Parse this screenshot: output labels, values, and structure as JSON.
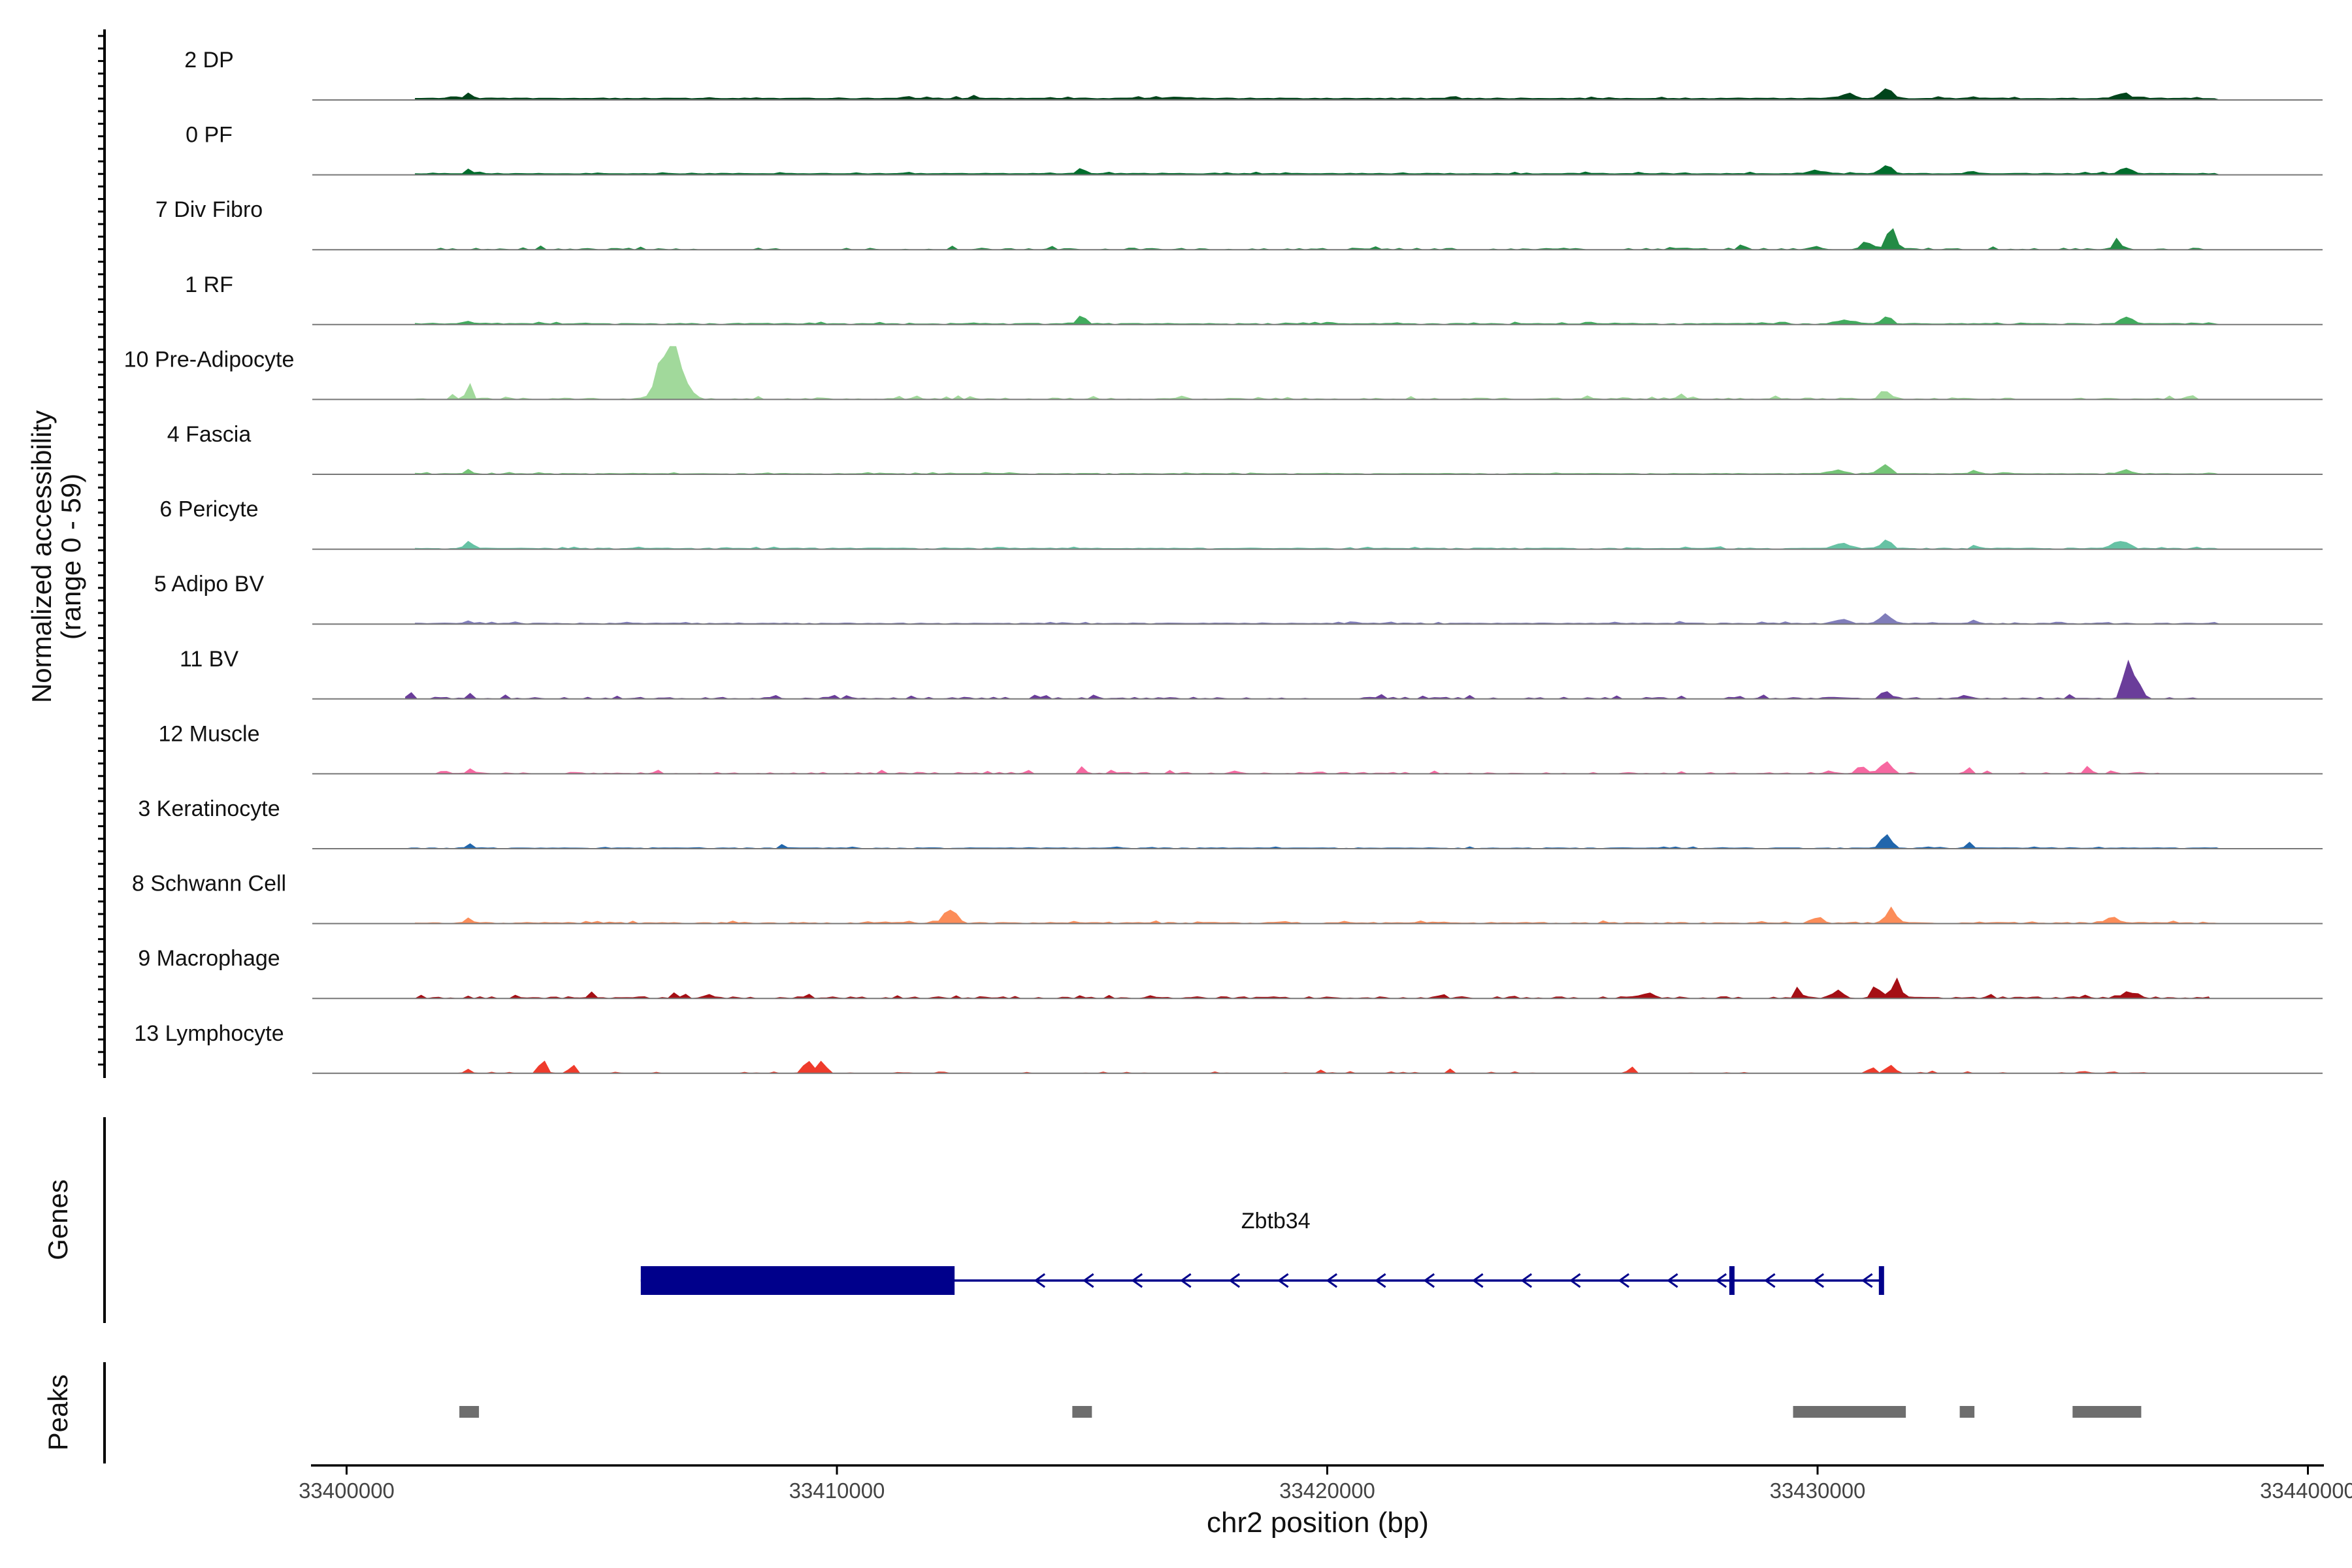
{
  "chart_data": {
    "type": "area",
    "title": "",
    "ylabel_line1": "Normalized accessibility",
    "ylabel_line2": "(range 0 - 59)",
    "xlabel": "chr2 position (bp)",
    "xlim": [
      33399300,
      33440300
    ],
    "ylim": [
      0,
      59
    ],
    "x_ticks": [
      33400000,
      33410000,
      33420000,
      33430000,
      33440000
    ],
    "x_tick_labels": [
      "33400000",
      "33410000",
      "33420000",
      "33430000",
      "33440000"
    ],
    "genes_label": "Genes",
    "peaks_label": "Peaks",
    "tracks": [
      {
        "name": "2 DP",
        "color": "#00441b",
        "start": 33401400,
        "end": 33438200,
        "base": 1,
        "noise": 0.6,
        "dense": 1.0,
        "peaks": [
          [
            33402500,
            4.5,
            60
          ],
          [
            33431400,
            7,
            120
          ],
          [
            33430600,
            3.5,
            150
          ],
          [
            33436200,
            4,
            130
          ],
          [
            33433200,
            2,
            60
          ],
          [
            33417000,
            1.2,
            150
          ],
          [
            33412800,
            1,
            100
          ]
        ]
      },
      {
        "name": "0 PF",
        "color": "#006d2c",
        "start": 33401400,
        "end": 33438200,
        "base": 0.8,
        "noise": 0.5,
        "dense": 1.0,
        "peaks": [
          [
            33402500,
            3,
            60
          ],
          [
            33415000,
            4,
            80
          ],
          [
            33431400,
            7,
            100
          ],
          [
            33436300,
            5.5,
            100
          ],
          [
            33430000,
            2.5,
            150
          ],
          [
            33433200,
            2,
            60
          ]
        ]
      },
      {
        "name": "7 Div Fibro",
        "color": "#238b45",
        "start": 33401800,
        "end": 33438000,
        "base": 0.4,
        "noise": 0.9,
        "dense": 0.45,
        "peaks": [
          [
            33431500,
            14,
            100
          ],
          [
            33431000,
            5,
            120
          ],
          [
            33436100,
            5,
            80
          ],
          [
            33430000,
            2,
            120
          ],
          [
            33428500,
            2,
            80
          ]
        ]
      },
      {
        "name": "1 RF",
        "color": "#41ab5d",
        "start": 33401400,
        "end": 33438200,
        "base": 0.5,
        "noise": 0.5,
        "dense": 0.9,
        "peaks": [
          [
            33402500,
            2.5,
            60
          ],
          [
            33415000,
            5.5,
            100
          ],
          [
            33431400,
            5,
            100
          ],
          [
            33436300,
            6.5,
            100
          ],
          [
            33430600,
            3,
            150
          ]
        ]
      },
      {
        "name": "10 Pre-Adipocyte",
        "color": "#a1d99b",
        "start": 33401200,
        "end": 33438000,
        "base": 0.3,
        "noise": 0.9,
        "dense": 0.55,
        "peaks": [
          [
            33402500,
            13,
            50
          ],
          [
            33406500,
            32,
            180
          ],
          [
            33406800,
            24,
            150
          ],
          [
            33402200,
            4,
            40
          ],
          [
            33431400,
            6,
            100
          ],
          [
            33427200,
            5,
            50
          ],
          [
            33437600,
            4,
            60
          ]
        ]
      },
      {
        "name": "4 Fascia",
        "color": "#74c476",
        "start": 33401400,
        "end": 33438200,
        "base": 0.4,
        "noise": 0.4,
        "dense": 0.9,
        "peaks": [
          [
            33402500,
            3,
            60
          ],
          [
            33431400,
            8,
            100
          ],
          [
            33430400,
            3,
            150
          ],
          [
            33433200,
            3,
            60
          ],
          [
            33436300,
            3,
            100
          ]
        ]
      },
      {
        "name": "6 Pericyte",
        "color": "#66c2a4",
        "start": 33401400,
        "end": 33438200,
        "base": 0.5,
        "noise": 0.5,
        "dense": 0.9,
        "peaks": [
          [
            33402500,
            7,
            70
          ],
          [
            33431400,
            6,
            120
          ],
          [
            33430500,
            3.5,
            150
          ],
          [
            33436200,
            6,
            150
          ],
          [
            33433200,
            3,
            60
          ],
          [
            33428000,
            2,
            60
          ]
        ]
      },
      {
        "name": "5 Adipo BV",
        "color": "#807dba",
        "start": 33401400,
        "end": 33438200,
        "base": 0.4,
        "noise": 0.5,
        "dense": 0.9,
        "peaks": [
          [
            33402500,
            2.5,
            50
          ],
          [
            33431400,
            8,
            110
          ],
          [
            33430500,
            3,
            150
          ],
          [
            33433200,
            2.5,
            60
          ],
          [
            33427200,
            2,
            50
          ]
        ]
      },
      {
        "name": "11 BV",
        "color": "#6a3d9a",
        "start": 33401200,
        "end": 33438200,
        "base": 0.3,
        "noise": 1.1,
        "dense": 0.5,
        "peaks": [
          [
            33436300,
            30,
            80
          ],
          [
            33436500,
            12,
            100
          ],
          [
            33401300,
            6,
            40
          ],
          [
            33402500,
            6,
            40
          ],
          [
            33431400,
            5,
            100
          ]
        ]
      },
      {
        "name": "12 Muscle",
        "color": "#f768a1",
        "start": 33401800,
        "end": 33437000,
        "base": 0.3,
        "noise": 0.9,
        "dense": 0.4,
        "peaks": [
          [
            33402500,
            5,
            50
          ],
          [
            33431400,
            10,
            100
          ],
          [
            33430900,
            5,
            100
          ],
          [
            33433100,
            5,
            50
          ],
          [
            33435500,
            5,
            60
          ],
          [
            33415000,
            4,
            50
          ]
        ]
      },
      {
        "name": "3 Keratinocyte",
        "color": "#2166ac",
        "start": 33401200,
        "end": 33438200,
        "base": 0.4,
        "noise": 0.4,
        "dense": 0.9,
        "peaks": [
          [
            33431400,
            9,
            100
          ],
          [
            33433100,
            5,
            50
          ],
          [
            33402500,
            3,
            50
          ],
          [
            33408900,
            2.5,
            50
          ]
        ]
      },
      {
        "name": "8 Schwann Cell",
        "color": "#fc8d59",
        "start": 33401400,
        "end": 33438200,
        "base": 0.4,
        "noise": 0.6,
        "dense": 0.8,
        "peaks": [
          [
            33412300,
            11,
            120
          ],
          [
            33431500,
            10,
            110
          ],
          [
            33402500,
            4,
            60
          ],
          [
            33436000,
            4,
            100
          ],
          [
            33430000,
            4,
            120
          ]
        ]
      },
      {
        "name": "9 Macrophage",
        "color": "#a50f15",
        "start": 33401400,
        "end": 33438000,
        "base": 0.4,
        "noise": 1.0,
        "dense": 0.55,
        "peaks": [
          [
            33431600,
            14,
            80
          ],
          [
            33429600,
            9,
            60
          ],
          [
            33431200,
            6,
            100
          ],
          [
            33430400,
            5,
            120
          ],
          [
            33426500,
            4,
            150
          ],
          [
            33436300,
            4,
            150
          ],
          [
            33405000,
            4,
            60
          ],
          [
            33406700,
            4,
            60
          ]
        ]
      },
      {
        "name": "13 Lymphocyte",
        "color": "#ef3b2c",
        "start": 33402000,
        "end": 33437500,
        "base": 0.0,
        "noise": 1.4,
        "dense": 0.18,
        "peaks": [
          [
            33409400,
            13,
            80
          ],
          [
            33409700,
            12,
            70
          ],
          [
            33404000,
            9,
            70
          ],
          [
            33404600,
            7,
            60
          ],
          [
            33426200,
            6,
            50
          ],
          [
            33431500,
            6,
            80
          ],
          [
            33431100,
            4,
            80
          ],
          [
            33402500,
            4,
            50
          ],
          [
            33435400,
            4,
            40
          ],
          [
            33422500,
            3,
            40
          ],
          [
            33419900,
            3,
            40
          ],
          [
            33436000,
            3,
            30
          ],
          [
            33436600,
            3,
            30
          ]
        ]
      }
    ],
    "gene": {
      "name": "Zbtb34",
      "strand": "-",
      "tx_start": 33406000,
      "tx_end": 33431300,
      "exons": [
        [
          33406000,
          33412400
        ],
        [
          33428200,
          33428300
        ],
        [
          33431250,
          33431300
        ]
      ],
      "color": "#00008b"
    },
    "peaks": [
      [
        33402300,
        33402700
      ],
      [
        33414800,
        33415200
      ],
      [
        33429500,
        33431800
      ],
      [
        33432900,
        33433200
      ],
      [
        33435200,
        33436600
      ]
    ],
    "peak_color": "#6e6e6e"
  }
}
